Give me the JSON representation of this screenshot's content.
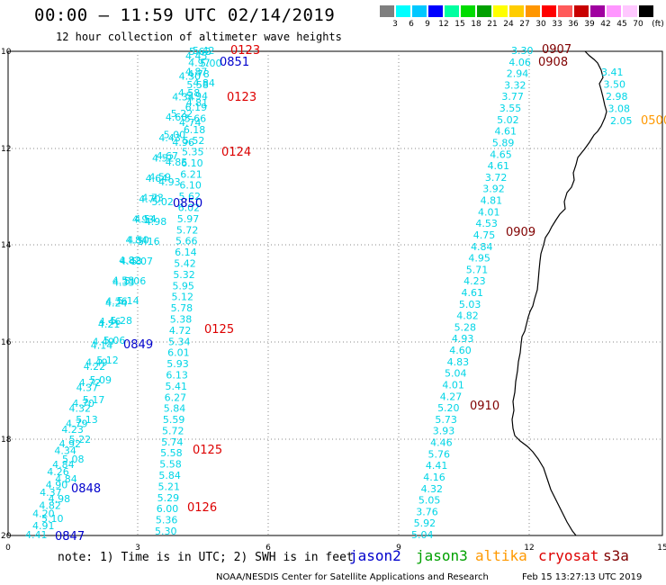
{
  "header": {
    "title": "00:00 – 11:59 UTC 02/14/2019",
    "subtitle": "12 hour collection of altimeter wave heights"
  },
  "colorbar": {
    "colors": [
      "#7f7f7f",
      "#00ffff",
      "#00c8ff",
      "#0000ff",
      "#00ffa0",
      "#00dc00",
      "#00a000",
      "#ffff00",
      "#ffcd00",
      "#ff9600",
      "#ff0000",
      "#ff5a5a",
      "#c80000",
      "#a000a0",
      "#ff96ff",
      "#ffc8ff",
      "#000000"
    ],
    "labels": [
      "3",
      "6",
      "9",
      "12",
      "15",
      "18",
      "21",
      "24",
      "27",
      "30",
      "33",
      "36",
      "39",
      "42",
      "45",
      "70",
      "(ft)"
    ]
  },
  "axes": {
    "y_labels": [
      "10",
      "12",
      "14",
      "16",
      "18",
      "20"
    ],
    "x_labels": [
      "0",
      "3",
      "6",
      "9",
      "12",
      "15"
    ]
  },
  "track_a": {
    "swh": [
      "5.42",
      "4.87",
      "4.58",
      "5.22",
      "5.00",
      "4.67",
      "4.59",
      "4.73",
      "4.54",
      "4.50",
      "4.48",
      "4.33",
      "4.24",
      "4.21",
      "4.14",
      "4.22",
      "4.37",
      "4.32",
      "4.23",
      "4.34",
      "4.26",
      "4.37",
      "4.20",
      "4.41",
      "4.45",
      "4.30",
      "4.34",
      "4.60",
      "4.43",
      "4.52",
      "4.64",
      "4.70",
      "4.93",
      "4.84",
      "4.82",
      "4.58",
      "4.36",
      "4.46",
      "4.49",
      "4.49",
      "4.72",
      "4.70",
      "4.79",
      "4.92",
      "4.84",
      "4.90",
      "4.82",
      "4.91",
      "5.00",
      "4.84",
      "4.81",
      "4.74",
      "4.96",
      "4.85",
      "4.93",
      "5.02",
      "4.98",
      "5.16",
      "5.07",
      "5.06",
      "5.14",
      "5.28",
      "5.06",
      "5.12",
      "5.09",
      "5.17",
      "5.13",
      "5.22",
      "5.08",
      "4.84",
      "4.98",
      "5.10"
    ],
    "labels": [
      {
        "text": "0851",
        "color": "#0000cc"
      },
      {
        "text": "0850",
        "color": "#0000cc"
      },
      {
        "text": "0849",
        "color": "#0000cc"
      },
      {
        "text": "0848",
        "color": "#0000cc"
      },
      {
        "text": "0847",
        "color": "#0000cc"
      }
    ]
  },
  "track_b": {
    "swh": [
      "5.62",
      "4.97",
      "4.78",
      "5.58",
      "5.94",
      "6.19",
      "5.66",
      "6.18",
      "5.52",
      "5.35",
      "6.10",
      "6.21",
      "6.10",
      "5.62",
      "6.02",
      "5.97",
      "5.72",
      "5.66",
      "6.14",
      "5.42",
      "5.32",
      "5.95",
      "5.12",
      "5.78",
      "5.38",
      "4.72",
      "5.34",
      "6.01",
      "5.93",
      "6.13",
      "5.41",
      "6.27",
      "5.84",
      "5.59",
      "5.72",
      "5.74",
      "5.58",
      "5.58",
      "5.84",
      "5.21",
      "5.29",
      "6.00",
      "5.36",
      "5.30"
    ],
    "labels": [
      {
        "text": "0123",
        "color": "#dd0000"
      },
      {
        "text": "0123",
        "color": "#dd0000"
      },
      {
        "text": "0124",
        "color": "#dd0000"
      },
      {
        "text": "0125",
        "color": "#dd0000"
      },
      {
        "text": "0125",
        "color": "#dd0000"
      },
      {
        "text": "0126",
        "color": "#dd0000"
      }
    ]
  },
  "track_c": {
    "swh": [
      "3.30",
      "4.06",
      "2.94",
      "3.32",
      "3.77",
      "3.55",
      "5.02",
      "4.61",
      "5.89",
      "4.65",
      "4.61",
      "3.72",
      "3.92",
      "4.81",
      "4.01",
      "4.53",
      "4.75",
      "4.84",
      "4.95",
      "5.71",
      "4.23",
      "4.61",
      "5.03",
      "4.82",
      "5.28",
      "4.93",
      "4.60",
      "4.83",
      "5.04",
      "4.01",
      "4.27",
      "5.20",
      "5.73",
      "3.93",
      "4.46",
      "5.76",
      "4.41",
      "4.16",
      "4.32",
      "5.05",
      "3.76",
      "5.92",
      "5.04"
    ],
    "labels": [
      {
        "text": "0907",
        "color": "#800000"
      },
      {
        "text": "0908",
        "color": "#800000"
      },
      {
        "text": "0909",
        "color": "#800000"
      },
      {
        "text": "0910",
        "color": "#800000"
      }
    ]
  },
  "track_d": {
    "swh": [
      "3.41",
      "3.50",
      "2.98",
      "3.08",
      "2.05"
    ],
    "label": {
      "text": "0500",
      "color": "#ff9900"
    }
  },
  "footer": {
    "note": "note: 1) Time is in UTC; 2) SWH is in feet",
    "satellites": [
      {
        "name": "jason2",
        "color": "#0000cc"
      },
      {
        "name": "jason3",
        "color": "#00a000"
      },
      {
        "name": "altika",
        "color": "#ff9900"
      },
      {
        "name": "cryosat",
        "color": "#dd0000"
      },
      {
        "name": "s3a",
        "color": "#800000"
      }
    ],
    "credit": "NOAA/NESDIS Center for Satellite Applications and Research",
    "timestamp": "Feb 15 13:27:13 UTC 2019"
  }
}
